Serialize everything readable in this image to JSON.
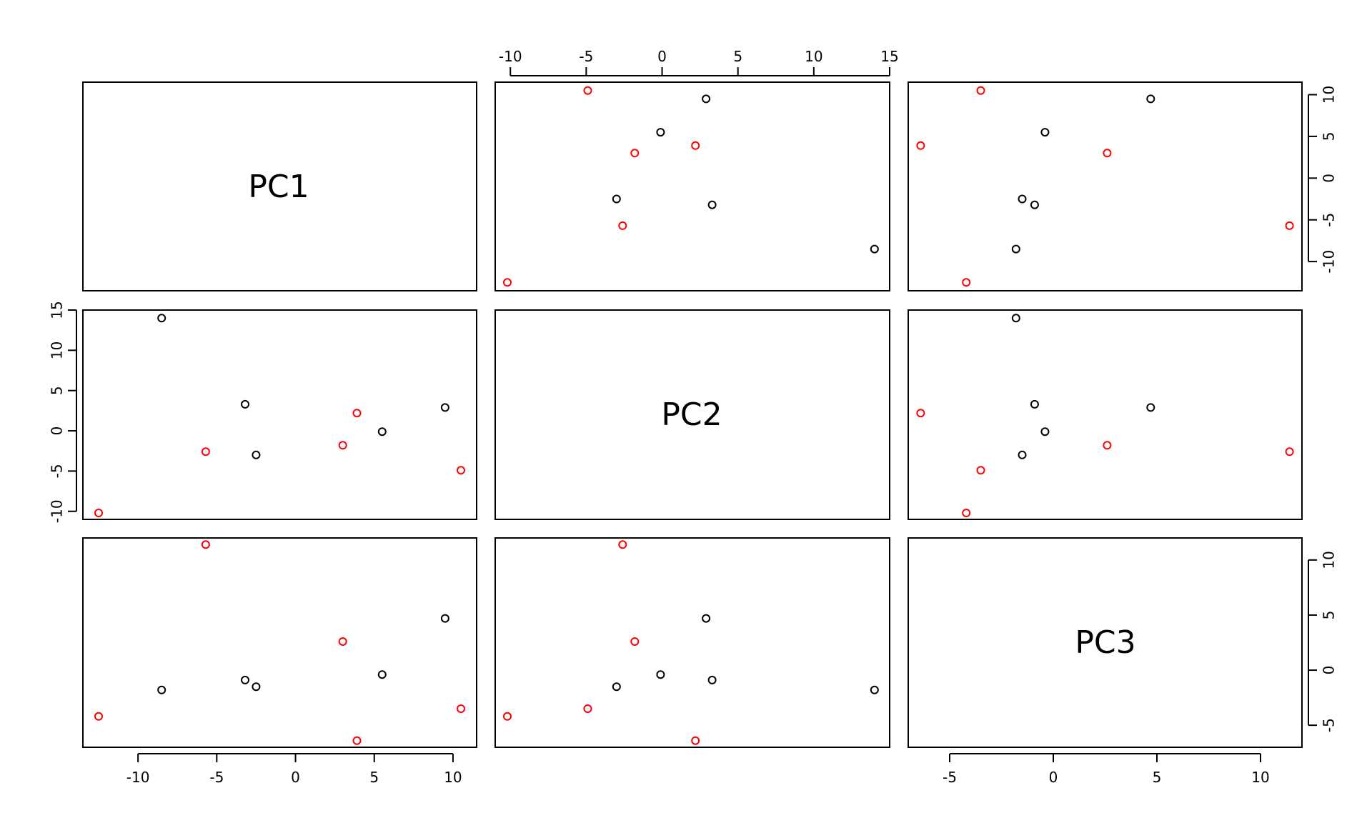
{
  "chart_data": {
    "type": "scatter",
    "variables": [
      "PC1",
      "PC2",
      "PC3"
    ],
    "colors": {
      "group1": "#000000",
      "group2": "#ff0000"
    },
    "points": [
      {
        "PC1": -8.5,
        "PC2": 14.0,
        "PC3": -1.8,
        "group": "group1"
      },
      {
        "PC1": -3.2,
        "PC2": 3.3,
        "PC3": -0.9,
        "group": "group1"
      },
      {
        "PC1": -2.5,
        "PC2": -3.0,
        "PC3": -1.5,
        "group": "group1"
      },
      {
        "PC1": 5.5,
        "PC2": -0.1,
        "PC3": -0.4,
        "group": "group1"
      },
      {
        "PC1": 9.5,
        "PC2": 2.9,
        "PC3": 4.7,
        "group": "group1"
      },
      {
        "PC1": -12.5,
        "PC2": -10.2,
        "PC3": -4.2,
        "group": "group2"
      },
      {
        "PC1": -5.7,
        "PC2": -2.6,
        "PC3": 11.4,
        "group": "group2"
      },
      {
        "PC1": 3.0,
        "PC2": -1.8,
        "PC3": 2.6,
        "group": "group2"
      },
      {
        "PC1": 3.9,
        "PC2": 2.2,
        "PC3": -6.4,
        "group": "group2"
      },
      {
        "PC1": 10.5,
        "PC2": -4.9,
        "PC3": -3.5,
        "group": "group2"
      }
    ],
    "axes": {
      "PC1": {
        "lim": [
          -13.5,
          11.5
        ],
        "ticks": [
          -10,
          -5,
          0,
          5,
          10
        ]
      },
      "PC2": {
        "lim": [
          -11.0,
          15.0
        ],
        "ticks": [
          -10,
          -5,
          0,
          5,
          10,
          15
        ]
      },
      "PC3": {
        "lim": [
          -7.0,
          12.0
        ],
        "ticks": [
          -5,
          0,
          5,
          10
        ]
      }
    }
  }
}
